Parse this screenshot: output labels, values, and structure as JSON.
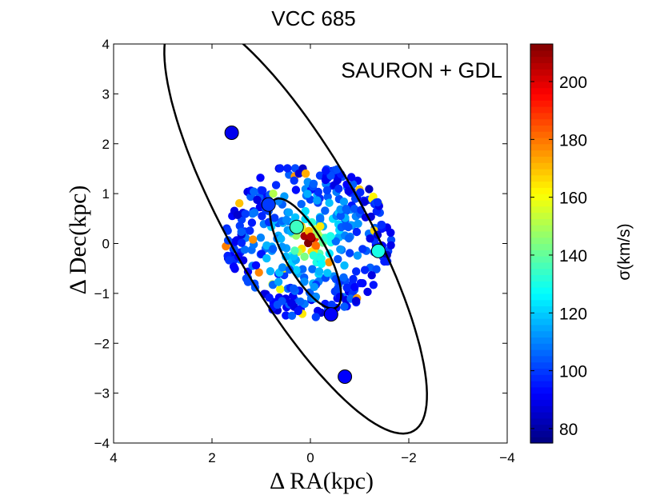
{
  "chart_data": {
    "type": "scatter",
    "title": "VCC 685",
    "xlabel": "Δ RA(kpc)",
    "ylabel": "Δ Dec(kpc)",
    "xlim": [
      4,
      -4
    ],
    "ylim": [
      -4,
      4
    ],
    "x_ticks": [
      4,
      2,
      0,
      -2,
      -4
    ],
    "x_tick_labels": [
      "4",
      "2",
      "0",
      "−2",
      "−4"
    ],
    "y_ticks": [
      4,
      3,
      2,
      1,
      0,
      -1,
      -2,
      -3,
      -4
    ],
    "y_tick_labels": [
      "4",
      "3",
      "2",
      "1",
      "0",
      "−1",
      "−2",
      "−3",
      "−4"
    ],
    "annotation": "SAURON + GDL",
    "colorbar": {
      "label": "σ(km/s)",
      "range": [
        75,
        213
      ],
      "ticks": [
        80,
        100,
        120,
        140,
        160,
        180,
        200
      ],
      "tick_labels": [
        "80",
        "100",
        "120",
        "140",
        "160",
        "180",
        "200"
      ],
      "colormap": "jet"
    },
    "ellipses": [
      {
        "name": "outer-ellipse",
        "center": [
          0.3,
          0.4
        ],
        "semi_major": 4.8,
        "semi_minor": 1.35,
        "pa_deg": 30
      },
      {
        "name": "inner-ellipse",
        "center": [
          0.1,
          -0.2
        ],
        "semi_major": 1.25,
        "semi_minor": 0.42,
        "pa_deg": 30
      }
    ],
    "map": {
      "center": [
        0.05,
        0.05
      ],
      "half_width_x": 1.7,
      "half_height_y": 1.55,
      "sigma_peak": 205,
      "sigma_floor": 90,
      "count": 420
    },
    "gc_points": [
      {
        "x": 1.6,
        "y": 2.22,
        "sigma": 90
      },
      {
        "x": 0.85,
        "y": 0.78,
        "sigma": 100
      },
      {
        "x": 0.28,
        "y": 0.33,
        "sigma": 135
      },
      {
        "x": -1.38,
        "y": -0.15,
        "sigma": 130
      },
      {
        "x": -0.42,
        "y": -1.42,
        "sigma": 92
      },
      {
        "x": -0.7,
        "y": -2.67,
        "sigma": 92
      }
    ]
  }
}
